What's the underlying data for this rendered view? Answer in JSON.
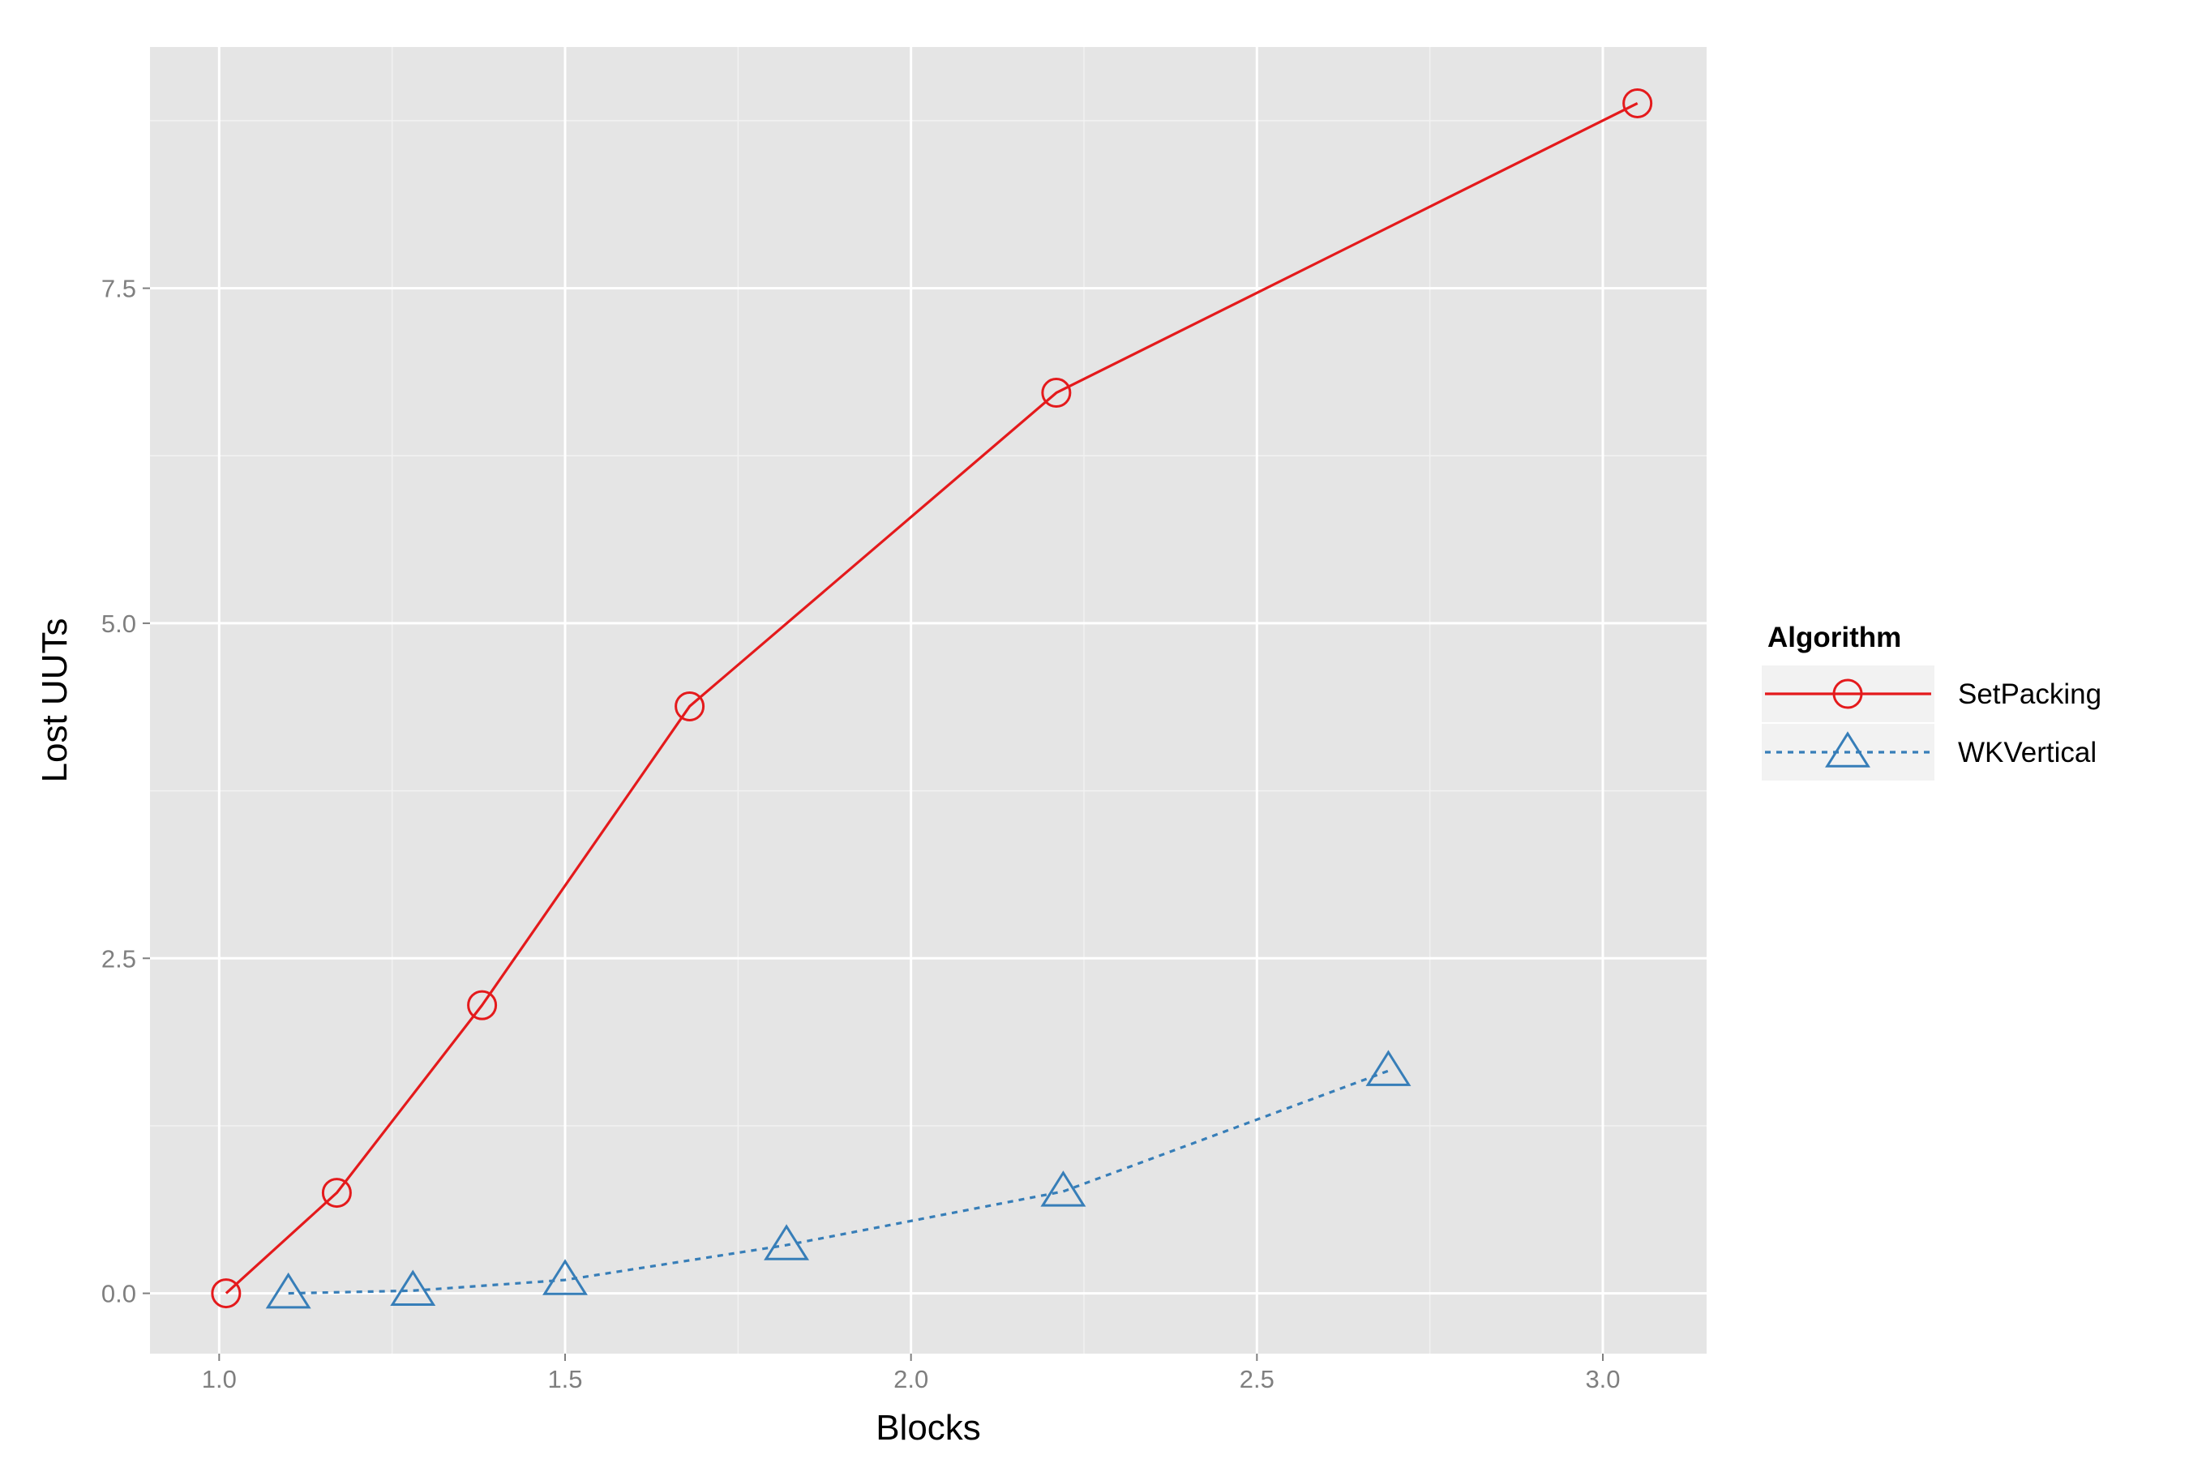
{
  "chart_data": {
    "type": "line",
    "title": "",
    "xlabel": "Blocks",
    "ylabel": "Lost UUTs",
    "xlim": [
      0.9,
      3.15
    ],
    "ylim": [
      -0.45,
      9.3
    ],
    "x_ticks": [
      1.0,
      1.5,
      2.0,
      2.5,
      3.0
    ],
    "x_tick_labels": [
      "1.0",
      "1.5",
      "2.0",
      "2.5",
      "3.0"
    ],
    "y_ticks": [
      0.0,
      2.5,
      5.0,
      7.5
    ],
    "y_tick_labels": [
      "0.0",
      "2.5",
      "5.0",
      "7.5"
    ],
    "grid": true,
    "background": "#e5e5e5",
    "legend": {
      "title": "Algorithm",
      "position": "right"
    },
    "series": [
      {
        "name": "SetPacking",
        "color": "#e41a1c",
        "marker": "circle",
        "line_style": "solid",
        "x": [
          1.01,
          1.17,
          1.38,
          1.68,
          2.21,
          3.05
        ],
        "y": [
          0.0,
          0.75,
          2.15,
          4.38,
          6.72,
          8.88
        ]
      },
      {
        "name": "WKVertical",
        "color": "#377eb8",
        "marker": "triangle",
        "line_style": "dashed",
        "x": [
          1.1,
          1.28,
          1.5,
          1.82,
          2.22,
          2.69
        ],
        "y": [
          0.0,
          0.02,
          0.1,
          0.36,
          0.76,
          1.66
        ]
      }
    ]
  }
}
